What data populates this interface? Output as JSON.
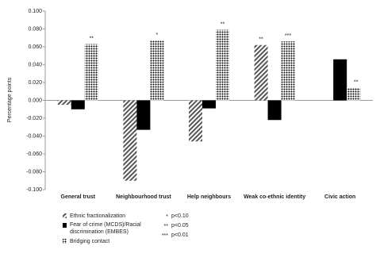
{
  "chart_data": {
    "type": "bar",
    "y_label": "Percentage points",
    "categories": [
      "General trust",
      "Neighbourhood trust",
      "Help neighbours",
      "Weak co-ethnic identity",
      "Civic action"
    ],
    "series": [
      {
        "name": "Ethnic fractionalization",
        "color": "#555555",
        "pattern": "hatch",
        "values": [
          -0.005,
          -0.09,
          -0.046,
          0.062,
          null
        ],
        "annotations": [
          null,
          null,
          null,
          "**",
          null
        ]
      },
      {
        "name": "Fear of crime (MCDS)/Racial discrimination (EMBES)",
        "color": "#000000",
        "pattern": "solid",
        "values": [
          -0.01,
          -0.033,
          -0.009,
          -0.022,
          0.046
        ],
        "annotations": [
          null,
          null,
          null,
          null,
          null
        ]
      },
      {
        "name": "Bridging contact",
        "color": "#000000",
        "pattern": "dots",
        "values": [
          0.063,
          0.067,
          0.079,
          0.066,
          0.014
        ],
        "annotations": [
          "**",
          "*",
          "**",
          "***",
          "**"
        ]
      }
    ],
    "significance_key": [
      {
        "symbol": "*",
        "text": "p<0.10"
      },
      {
        "symbol": "**",
        "text": "p<0.05"
      },
      {
        "symbol": "***",
        "text": "p<0.01"
      }
    ],
    "ylim": [
      -0.1,
      0.1
    ],
    "yticks": [
      {
        "value": 0.1,
        "label": "0.100"
      },
      {
        "value": 0.08,
        "label": "0.080"
      },
      {
        "value": 0.06,
        "label": "0.060"
      },
      {
        "value": 0.04,
        "label": "0.040"
      },
      {
        "value": 0.02,
        "label": "0.020"
      },
      {
        "value": 0,
        "label": "0.000"
      },
      {
        "value": -0.02,
        "label": "-0.020"
      },
      {
        "value": -0.04,
        "label": "-0.040"
      },
      {
        "value": -0.06,
        "label": "-0.060"
      },
      {
        "value": -0.08,
        "label": "-0.080"
      },
      {
        "value": -0.1,
        "label": "-0.100"
      }
    ],
    "grid": false
  }
}
